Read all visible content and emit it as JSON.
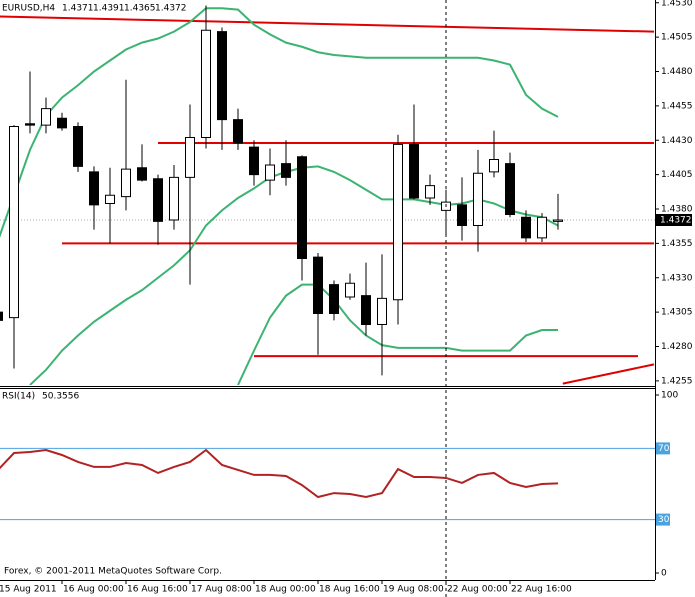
{
  "chart_data": [
    {
      "type": "candlestick",
      "title": "EURUSD,H4",
      "header_values": [
        1.4371,
        1.4391,
        1.4365,
        1.4372
      ],
      "categories": [
        "15 Aug 2011",
        null,
        null,
        null,
        "16 Aug 00:00",
        null,
        null,
        null,
        "16 Aug 16:00",
        null,
        null,
        null,
        "17 Aug 08:00",
        null,
        null,
        null,
        "18 Aug 00:00",
        null,
        null,
        null,
        "18 Aug 16:00",
        null,
        null,
        null,
        "19 Aug 08:00",
        null,
        null,
        null,
        "22 Aug 00:00",
        null,
        null,
        null,
        "22 Aug 16:00",
        null,
        null,
        null
      ],
      "open": [
        1.4305,
        1.4301,
        1.4442,
        1.4441,
        1.4446,
        1.444,
        1.4407,
        1.4384,
        1.4389,
        1.441,
        1.4402,
        1.4372,
        1.4403,
        1.4432,
        1.4509,
        1.4445,
        1.4425,
        1.4401,
        1.4413,
        1.4418,
        1.4345,
        1.4325,
        1.4316,
        1.4317,
        1.4296,
        1.4314,
        1.4427,
        1.4388,
        1.4379,
        1.4383,
        1.4368,
        1.4407,
        1.4413,
        1.4374,
        1.4359,
        1.4371
      ],
      "high": [
        1.431,
        1.4441,
        1.448,
        1.4461,
        1.445,
        1.4443,
        1.4411,
        1.441,
        1.4474,
        1.4427,
        1.4405,
        1.4412,
        1.4456,
        1.4528,
        1.4512,
        1.4453,
        1.443,
        1.4424,
        1.443,
        1.4419,
        1.4348,
        1.4328,
        1.4333,
        1.4341,
        1.4347,
        1.4434,
        1.4456,
        1.4405,
        1.4394,
        1.4403,
        1.4423,
        1.4437,
        1.4421,
        1.4379,
        1.4377,
        1.4391
      ],
      "low": [
        1.4295,
        1.4264,
        1.4435,
        1.4435,
        1.4437,
        1.4407,
        1.4365,
        1.4355,
        1.4379,
        1.44,
        1.4354,
        1.4365,
        1.4325,
        1.4424,
        1.4423,
        1.4423,
        1.4397,
        1.439,
        1.4397,
        1.4328,
        1.4274,
        1.4299,
        1.4314,
        1.4288,
        1.4259,
        1.4296,
        1.4387,
        1.4383,
        1.4361,
        1.4357,
        1.4349,
        1.4403,
        1.4374,
        1.4356,
        1.4356,
        1.4365
      ],
      "close": [
        1.4299,
        1.444,
        1.4441,
        1.4453,
        1.4439,
        1.4411,
        1.4383,
        1.439,
        1.4409,
        1.4401,
        1.4371,
        1.4403,
        1.4432,
        1.451,
        1.4445,
        1.4428,
        1.4405,
        1.4412,
        1.4403,
        1.4344,
        1.4304,
        1.4304,
        1.4326,
        1.4296,
        1.4315,
        1.4427,
        1.4388,
        1.4397,
        1.4385,
        1.4368,
        1.4406,
        1.4416,
        1.4376,
        1.4359,
        1.4374,
        1.4372
      ],
      "up_color": "#ffffff",
      "down_color": "#000000",
      "bands": [
        {
          "color": "#3cb371",
          "values": [
            1.4357,
            1.439,
            1.4423,
            1.4448,
            1.4461,
            1.447,
            1.448,
            1.4488,
            1.4496,
            1.4501,
            1.4504,
            1.4509,
            1.4516,
            1.4526,
            1.4526,
            1.4525,
            1.4514,
            1.4507,
            1.4501,
            1.4498,
            1.4494,
            1.4492,
            1.4491,
            1.449,
            1.449,
            1.449,
            1.449,
            1.449,
            1.449,
            1.449,
            1.449,
            1.4488,
            1.4485,
            1.4463,
            1.4453,
            1.4447
          ]
        },
        {
          "color": "#3cb371",
          "values": [
            null,
            null,
            1.4252,
            1.4263,
            1.4277,
            1.4288,
            1.4298,
            1.4306,
            1.4314,
            1.4321,
            1.433,
            1.4339,
            1.435,
            1.4368,
            1.4379,
            1.4388,
            1.4395,
            1.4403,
            1.4407,
            1.441,
            1.4411,
            1.4407,
            1.4401,
            1.4394,
            1.4387,
            1.4387,
            1.4387,
            1.4385,
            1.4383,
            1.4384,
            1.4387,
            1.4384,
            1.4379,
            1.4376,
            1.4374,
            1.4368
          ]
        },
        {
          "color": "#3cb371",
          "values": [
            null,
            null,
            null,
            null,
            null,
            null,
            null,
            null,
            null,
            null,
            null,
            null,
            null,
            null,
            null,
            1.4252,
            1.4277,
            1.4301,
            1.4317,
            1.4325,
            1.4325,
            1.4314,
            1.4299,
            1.4288,
            1.4281,
            1.4279,
            1.4279,
            1.4279,
            1.4279,
            1.4277,
            1.4277,
            1.4277,
            1.4277,
            1.4288,
            1.4292,
            1.4292
          ]
        }
      ],
      "trendlines": [
        {
          "x": [
            0,
            41
          ],
          "values": [
            1.452,
            1.4509
          ],
          "color": "#e00000"
        },
        {
          "x": [
            10,
            41
          ],
          "values": [
            1.4428,
            1.4428
          ],
          "color": "#e00000"
        },
        {
          "x": [
            4,
            41
          ],
          "values": [
            1.4355,
            1.4355
          ],
          "color": "#e00000"
        },
        {
          "x": [
            16,
            40
          ],
          "values": [
            1.4273,
            1.4273
          ],
          "color": "#e00000"
        },
        {
          "x": [
            35.3,
            41
          ],
          "values": [
            1.4253,
            1.4267
          ],
          "color": "#e00000"
        }
      ],
      "vline": 28,
      "last_price": 1.4372,
      "ylim": [
        1.4252,
        1.4532
      ],
      "yticks": [
        {
          "value": 1.453,
          "label": "1.4530"
        },
        1.4505,
        {
          "value": 1.448,
          "label": "1.4480"
        },
        1.4455,
        {
          "value": 1.443,
          "label": "1.4430"
        },
        1.4405,
        {
          "value": 1.438,
          "label": "1.4380"
        },
        1.4355,
        {
          "value": 1.433,
          "label": "1.4330"
        },
        1.4305,
        {
          "value": 1.428,
          "label": "1.4280"
        },
        1.4255
      ]
    },
    {
      "type": "line",
      "title": "RSI(14)",
      "current": 50.3556,
      "color": "#b22222",
      "values": [
        57.9,
        67.4,
        68.0,
        69.1,
        66.3,
        62.4,
        59.6,
        59.6,
        61.8,
        60.7,
        56.2,
        59.6,
        62.4,
        69.1,
        60.7,
        57.9,
        55.1,
        55.1,
        54.5,
        49.4,
        42.7,
        44.9,
        44.4,
        42.7,
        44.9,
        58.4,
        53.9,
        53.9,
        53.4,
        50.6,
        55.1,
        56.2,
        50.6,
        48.3,
        50.0,
        50.3556
      ],
      "levels": [
        70,
        30
      ],
      "level_color": "#4aa3df",
      "ylim": [
        0,
        100
      ],
      "yticks": [
        100,
        0
      ],
      "annotation": "Forex, © 2001-2011 MetaQuotes Software Corp."
    }
  ]
}
